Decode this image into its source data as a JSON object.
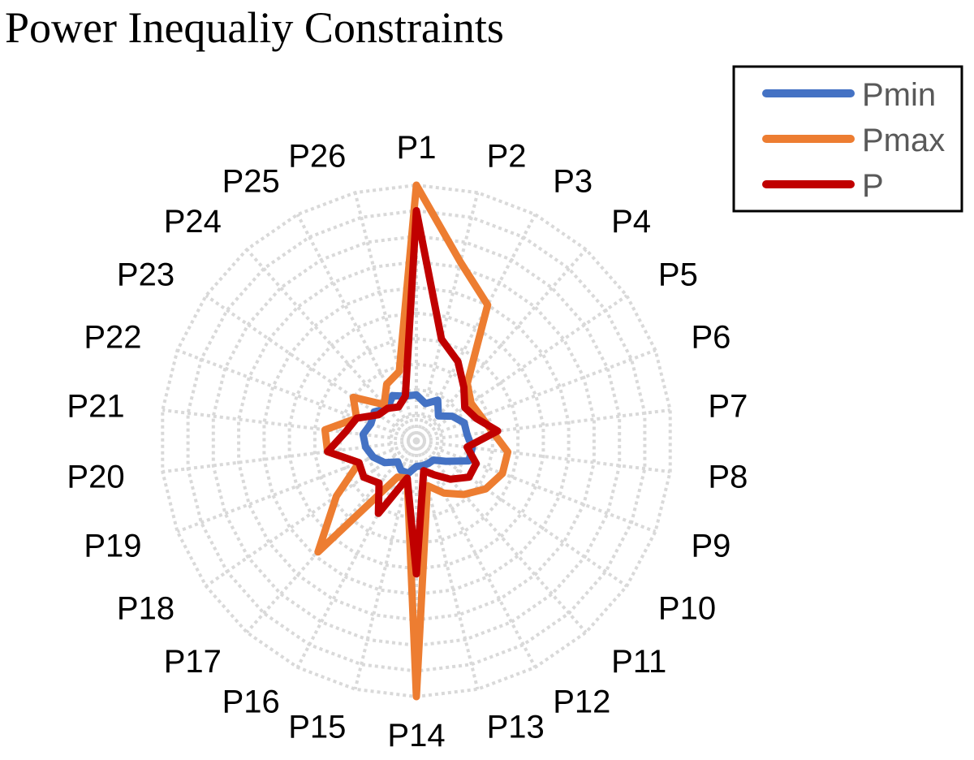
{
  "chart_data": {
    "type": "radar",
    "title": "Power Inequaliy Constraints",
    "categories": [
      "P1",
      "P2",
      "P3",
      "P4",
      "P5",
      "P6",
      "P7",
      "P8",
      "P9",
      "P10",
      "P11",
      "P12",
      "P13",
      "P14",
      "P15",
      "P16",
      "P17",
      "P18",
      "P19",
      "P20",
      "P21",
      "P22",
      "P23",
      "P24",
      "P25",
      "P26"
    ],
    "rmax": 100,
    "rings": 10,
    "legend_position": "top-right",
    "series": [
      {
        "name": "Pmin",
        "color": "#4472C4",
        "values": [
          18,
          15,
          18,
          13,
          17,
          20,
          20,
          22,
          22,
          14,
          10,
          10,
          10,
          10,
          13,
          13,
          11,
          15,
          18,
          20,
          21,
          19,
          20,
          17,
          20,
          18
        ]
      },
      {
        "name": "Pmax",
        "color": "#ED7D31",
        "values": [
          100,
          72,
          60,
          30,
          26,
          27,
          30,
          36,
          36,
          33,
          28,
          23,
          18,
          100,
          15,
          16,
          58,
          38,
          24,
          35,
          36,
          25,
          30,
          19,
          25,
          28
        ]
      },
      {
        "name": "P",
        "color": "#C00000",
        "values": [
          90,
          41,
          35,
          28,
          23,
          25,
          32,
          20,
          25,
          25,
          20,
          15,
          12,
          52,
          15,
          32,
          22,
          25,
          24,
          35,
          28,
          25,
          18,
          17,
          15,
          18
        ]
      }
    ]
  }
}
